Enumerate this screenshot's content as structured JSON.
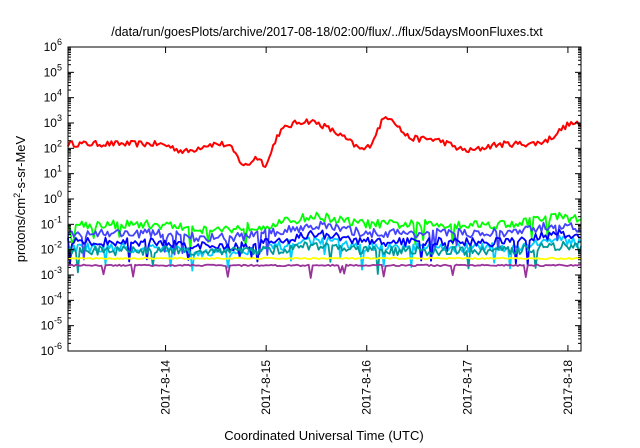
{
  "chart_data": {
    "type": "line",
    "title": "/data/run/goesPlots/archive/2017-08-18/02:00/flux/../flux/5daysMoonFluxes.txt",
    "xlabel": "Coordinated Universal Time (UTC)",
    "ylabel": {
      "prefix": "protons/cm",
      "sup": "2",
      "suffix": "-s-sr-MeV"
    },
    "y_scale": "log",
    "ylim_exponents": [
      -6,
      6
    ],
    "y_tick_exponents": [
      -6,
      -5,
      -4,
      -3,
      -2,
      -1,
      0,
      1,
      2,
      3,
      4,
      5,
      6
    ],
    "xlim_days": [
      -0.97,
      4.13
    ],
    "x_tick_labels": [
      "2017-8-14",
      "2017-8-15",
      "2017-8-16",
      "2017-8-17",
      "2017-8-18"
    ],
    "grid": false,
    "legend": "none",
    "series": [
      {
        "color": "#ff0000",
        "base": 150,
        "bumps": [
          [
            -0.97,
            0.08,
            1.0
          ],
          [
            0.0,
            0.1,
            1.0
          ],
          [
            -0.3,
            0.15,
            0.2
          ],
          [
            0.9,
            0.35,
            1.4
          ],
          [
            1.1,
            0.15,
            2.2
          ],
          [
            -0.9,
            0.12,
            0.8
          ],
          [
            -0.4,
            0.15,
            2.0
          ],
          [
            -0.3,
            0.2,
            3.0
          ],
          [
            0.2,
            0.3,
            2.6
          ],
          [
            0.8,
            0.2,
            4.05
          ]
        ]
      },
      {
        "color": "#00ff00",
        "base": 0.1,
        "bumps": [
          [
            0.3,
            0.3,
            1.5
          ],
          [
            0.3,
            0.3,
            3.9
          ],
          [
            -0.2,
            0.4,
            0.5
          ]
        ]
      },
      {
        "color": "#00ccff",
        "base": 0.012,
        "bumps": [
          [
            0.3,
            0.3,
            1.5
          ],
          [
            0.3,
            0.3,
            3.9
          ],
          [
            -0.2,
            0.4,
            0.5
          ]
        ]
      },
      {
        "color": "#4444ff",
        "base": 0.045,
        "bumps": [
          [
            0.3,
            0.3,
            1.5
          ],
          [
            0.3,
            0.3,
            3.9
          ],
          [
            -0.2,
            0.4,
            0.5
          ]
        ]
      },
      {
        "color": "#0000ff",
        "base": 0.02,
        "bumps": [
          [
            0.3,
            0.3,
            1.5
          ],
          [
            0.3,
            0.3,
            3.9
          ],
          [
            -0.2,
            0.4,
            0.5
          ]
        ]
      },
      {
        "color": "#009999",
        "base": 0.009,
        "bumps": [
          [
            0.2,
            0.3,
            1.5
          ],
          [
            0.2,
            0.3,
            3.9
          ]
        ]
      },
      {
        "color": "#ffff00",
        "base": 0.0045,
        "bumps": []
      },
      {
        "color": "#993399",
        "base": 0.0024,
        "bumps": []
      }
    ]
  }
}
